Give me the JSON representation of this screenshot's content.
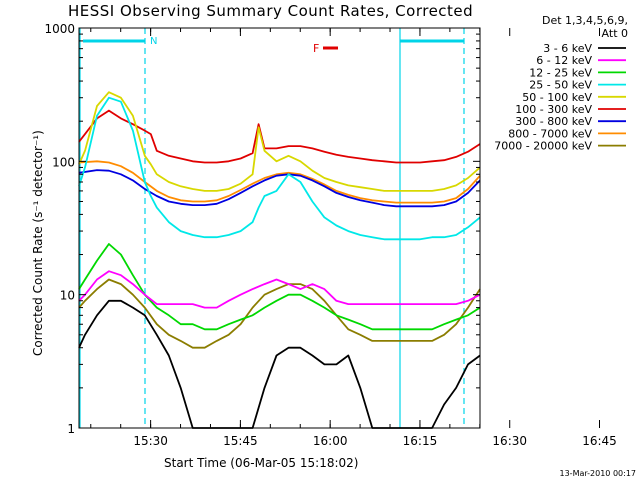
{
  "chart_data": {
    "type": "line",
    "title": "HESSI Observing Summary Count Rates, Corrected",
    "xlabel": "Start Time (06-Mar-05 15:18:02)",
    "ylabel": "Corrected Count Rate (s⁻¹ detector⁻¹)",
    "y_scale": "log",
    "ylim": [
      1,
      1000
    ],
    "xlim_minutes_after_start": [
      0,
      67
    ],
    "x_ticks": [
      "15:30",
      "15:45",
      "16:00",
      "16:15",
      "16:30",
      "16:45"
    ],
    "y_ticks": [
      "1",
      "10",
      "100",
      "1000"
    ],
    "legend_header": [
      "Det 1,3,4,5,6,9,",
      "Att 0"
    ],
    "legend_placement": "right",
    "grid": false,
    "flag_label": "F",
    "flag_color": "#e00000",
    "region_label": "N",
    "region_color": "#00d4e8",
    "footer_date": "13-Mar-2010 00:17",
    "series": [
      {
        "name": "3 - 6 keV",
        "color": "#000000",
        "x": [
          0,
          1,
          3,
          5,
          7,
          9,
          11,
          13,
          15,
          17,
          19,
          21,
          23,
          25,
          27,
          29,
          31,
          33,
          35,
          37,
          39,
          41,
          43,
          45,
          47,
          49,
          51,
          53,
          55,
          57,
          59,
          61,
          63,
          65,
          67
        ],
        "y": [
          4,
          5,
          7,
          9,
          9,
          8,
          7,
          5,
          3.5,
          2,
          1,
          1,
          1,
          1,
          1,
          1,
          2,
          3.5,
          4,
          4,
          3.5,
          3,
          3,
          3.5,
          2,
          1,
          1,
          1,
          1,
          1,
          1,
          1.5,
          2,
          3,
          3.5
        ]
      },
      {
        "name": "6 - 12 keV",
        "color": "#ff00ff",
        "x": [
          0,
          1,
          3,
          5,
          7,
          9,
          11,
          13,
          15,
          17,
          19,
          21,
          23,
          25,
          27,
          29,
          31,
          33,
          35,
          37,
          39,
          41,
          43,
          45,
          47,
          49,
          51,
          53,
          55,
          57,
          59,
          61,
          63,
          65,
          67
        ],
        "y": [
          9,
          10,
          13,
          15,
          14,
          12,
          10,
          8.5,
          8.5,
          8.5,
          8.5,
          8,
          8,
          9,
          10,
          11,
          12,
          13,
          12,
          11,
          12,
          11,
          9,
          8.5,
          8.5,
          8.5,
          8.5,
          8.5,
          8.5,
          8.5,
          8.5,
          8.5,
          8.5,
          9,
          10
        ]
      },
      {
        "name": "12 - 25 keV",
        "color": "#00d800",
        "x": [
          0,
          1,
          3,
          5,
          7,
          9,
          11,
          13,
          15,
          17,
          19,
          21,
          23,
          25,
          27,
          29,
          31,
          33,
          35,
          37,
          39,
          41,
          43,
          45,
          47,
          49,
          51,
          53,
          55,
          57,
          59,
          61,
          63,
          65,
          67
        ],
        "y": [
          11,
          13,
          18,
          24,
          20,
          14,
          10,
          8,
          7,
          6,
          6,
          5.5,
          5.5,
          6,
          6.5,
          7,
          8,
          9,
          10,
          10,
          9,
          8,
          7,
          6.5,
          6,
          5.5,
          5.5,
          5.5,
          5.5,
          5.5,
          5.5,
          6,
          6.5,
          7,
          8
        ]
      },
      {
        "name": "25 - 50 keV",
        "color": "#00e8e8",
        "x": [
          0,
          1,
          3,
          5,
          7,
          9,
          11,
          12,
          13,
          15,
          17,
          19,
          21,
          23,
          25,
          27,
          29,
          30,
          31,
          33,
          35,
          37,
          39,
          41,
          43,
          45,
          47,
          49,
          51,
          53,
          55,
          57,
          59,
          61,
          63,
          65,
          67
        ],
        "y": [
          65,
          90,
          220,
          300,
          280,
          170,
          70,
          55,
          45,
          35,
          30,
          28,
          27,
          27,
          28,
          30,
          35,
          45,
          55,
          60,
          80,
          70,
          50,
          38,
          33,
          30,
          28,
          27,
          26,
          26,
          26,
          26,
          27,
          27,
          28,
          32,
          38
        ]
      },
      {
        "name": "50 - 100 keV",
        "color": "#d8d800",
        "x": [
          0,
          1,
          3,
          5,
          7,
          9,
          11,
          12,
          13,
          15,
          17,
          19,
          21,
          23,
          25,
          27,
          29,
          30,
          31,
          33,
          35,
          37,
          39,
          41,
          43,
          45,
          47,
          49,
          51,
          53,
          55,
          57,
          59,
          61,
          63,
          65,
          67
        ],
        "y": [
          95,
          120,
          260,
          330,
          300,
          220,
          110,
          95,
          80,
          70,
          65,
          62,
          60,
          60,
          62,
          68,
          80,
          180,
          120,
          100,
          110,
          100,
          85,
          75,
          70,
          66,
          64,
          62,
          60,
          60,
          60,
          60,
          60,
          62,
          66,
          75,
          90
        ]
      },
      {
        "name": "100 - 300 keV",
        "color": "#e00000",
        "x": [
          0,
          1,
          3,
          5,
          7,
          9,
          11,
          12,
          13,
          15,
          17,
          19,
          21,
          23,
          25,
          27,
          29,
          30,
          31,
          33,
          35,
          37,
          39,
          41,
          43,
          45,
          47,
          49,
          51,
          53,
          55,
          57,
          59,
          61,
          63,
          65,
          67
        ],
        "y": [
          140,
          160,
          210,
          240,
          210,
          190,
          170,
          160,
          120,
          110,
          105,
          100,
          98,
          98,
          100,
          105,
          115,
          190,
          125,
          125,
          130,
          130,
          125,
          118,
          112,
          108,
          105,
          102,
          100,
          98,
          98,
          98,
          100,
          102,
          108,
          118,
          135
        ]
      },
      {
        "name": "300 - 800 keV",
        "color": "#0000e0",
        "x": [
          0,
          3,
          5,
          7,
          9,
          11,
          13,
          15,
          17,
          19,
          21,
          23,
          25,
          27,
          29,
          31,
          33,
          35,
          37,
          39,
          41,
          43,
          45,
          47,
          49,
          51,
          53,
          55,
          57,
          59,
          61,
          63,
          65,
          67
        ],
        "y": [
          82,
          86,
          85,
          80,
          72,
          62,
          55,
          50,
          48,
          47,
          47,
          48,
          52,
          58,
          65,
          72,
          78,
          80,
          78,
          72,
          65,
          58,
          54,
          51,
          49,
          47,
          46,
          46,
          46,
          46,
          47,
          50,
          58,
          72
        ]
      },
      {
        "name": "800 - 7000 keV",
        "color": "#ff8c00",
        "x": [
          0,
          3,
          5,
          7,
          9,
          11,
          13,
          15,
          17,
          19,
          21,
          23,
          25,
          27,
          29,
          31,
          33,
          35,
          37,
          39,
          41,
          43,
          45,
          47,
          49,
          51,
          53,
          55,
          57,
          59,
          61,
          63,
          65,
          67
        ],
        "y": [
          98,
          100,
          98,
          92,
          82,
          70,
          60,
          54,
          51,
          50,
          50,
          51,
          55,
          61,
          68,
          75,
          80,
          82,
          80,
          74,
          67,
          60,
          56,
          53,
          51,
          50,
          49,
          49,
          49,
          49,
          50,
          53,
          62,
          78
        ]
      },
      {
        "name": "7000 - 20000 keV",
        "color": "#8b7d00",
        "x": [
          0,
          1,
          3,
          5,
          7,
          9,
          11,
          13,
          15,
          17,
          19,
          21,
          23,
          25,
          27,
          29,
          31,
          33,
          35,
          37,
          39,
          41,
          43,
          45,
          47,
          49,
          51,
          53,
          55,
          57,
          59,
          61,
          63,
          65,
          67
        ],
        "y": [
          8,
          9,
          11,
          13,
          12,
          10,
          8,
          6,
          5,
          4.5,
          4,
          4,
          4.5,
          5,
          6,
          8,
          10,
          11,
          12,
          12,
          11,
          9,
          7,
          5.5,
          5,
          4.5,
          4.5,
          4.5,
          4.5,
          4.5,
          4.5,
          5,
          6,
          8,
          11
        ]
      }
    ]
  }
}
